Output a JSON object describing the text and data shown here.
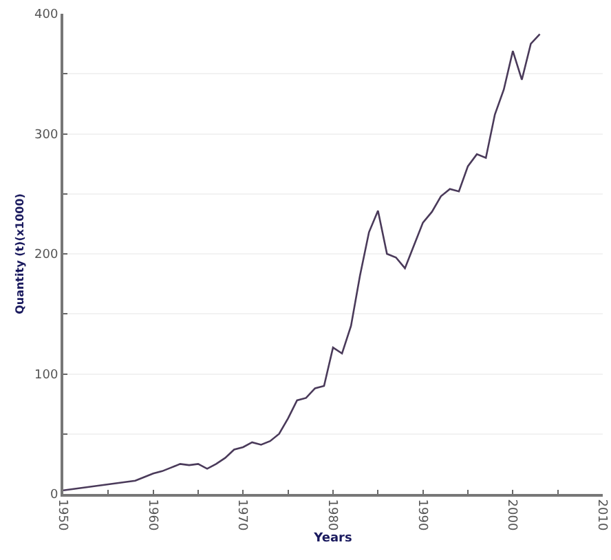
{
  "chart_data": {
    "type": "line",
    "xlabel": "Years",
    "ylabel": "Quantity (t)(x1000)",
    "x": [
      1950,
      1951,
      1952,
      1953,
      1954,
      1955,
      1956,
      1957,
      1958,
      1959,
      1960,
      1961,
      1962,
      1963,
      1964,
      1965,
      1966,
      1967,
      1968,
      1969,
      1970,
      1971,
      1972,
      1973,
      1974,
      1975,
      1976,
      1977,
      1978,
      1979,
      1980,
      1981,
      1982,
      1983,
      1984,
      1985,
      1986,
      1987,
      1988,
      1989,
      1990,
      1991,
      1992,
      1993,
      1994,
      1995,
      1996,
      1997,
      1998,
      1999,
      2000,
      2001,
      2002,
      2003
    ],
    "series": [
      {
        "color": "#4a3a5a",
        "values": [
          3,
          4,
          5,
          6,
          7,
          8,
          9,
          10,
          11,
          14,
          17,
          19,
          22,
          25,
          24,
          25,
          21,
          25,
          30,
          37,
          39,
          43,
          41,
          44,
          50,
          63,
          78,
          80,
          88,
          90,
          122,
          117,
          140,
          182,
          218,
          236,
          200,
          197,
          188,
          207,
          226,
          235,
          248,
          254,
          252,
          273,
          283,
          280,
          316,
          337,
          369,
          345,
          375,
          383
        ]
      }
    ],
    "xlim": [
      1950,
      2010
    ],
    "xticks": [
      1950,
      {
        "value": 1955,
        "label": null
      },
      1960,
      {
        "value": 1965,
        "label": null
      },
      1970,
      {
        "value": 1975,
        "label": null
      },
      1980,
      {
        "value": 1985,
        "label": null
      },
      1990,
      {
        "value": 1995,
        "label": null
      },
      2000,
      {
        "value": 2005,
        "label": null
      },
      2010
    ],
    "ylim": [
      0,
      400
    ],
    "yticks": [
      0,
      {
        "value": 50,
        "label": null
      },
      100,
      {
        "value": 150,
        "label": null
      },
      200,
      {
        "value": 250,
        "label": null
      },
      300,
      {
        "value": 350,
        "label": null
      },
      400
    ],
    "grid": "y",
    "marker": "none",
    "line_style": "solid"
  }
}
